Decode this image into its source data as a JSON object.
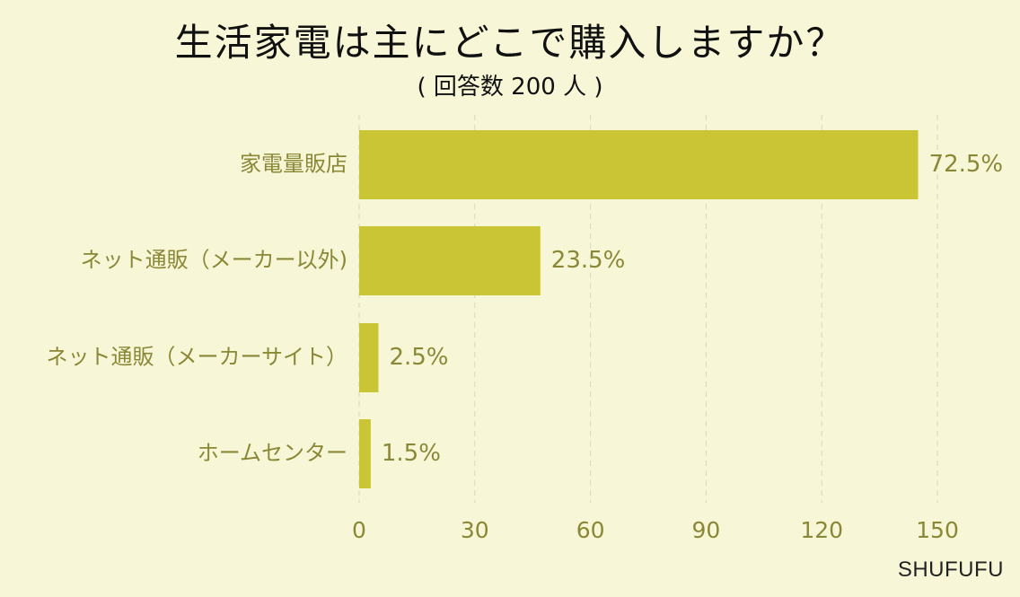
{
  "title": "生活家電は主にどこで購入しますか？",
  "subtitle": "( 回答数 200 人 )",
  "brand": "SHUFUFU",
  "colors": {
    "background": "#f7f7d8",
    "bar": "#c9c534",
    "label": "#8a8836",
    "grid": "#d6d6c0"
  },
  "chart_data": {
    "type": "bar",
    "orientation": "horizontal",
    "title": "生活家電は主にどこで購入しますか？",
    "subtitle": "( 回答数 200 人 )",
    "categories": [
      "家電量販店",
      "ネット通販（メーカー以外)",
      "ネット通販（メーカーサイト）",
      "ホームセンター"
    ],
    "values": [
      145,
      47,
      5,
      3
    ],
    "value_labels": [
      "72.5%",
      "23.5%",
      "2.5%",
      "1.5%"
    ],
    "xticks": [
      0,
      30,
      60,
      90,
      120,
      150
    ],
    "xtick_labels": [
      "0",
      "30",
      "60",
      "90",
      "120",
      "150"
    ],
    "xlim": [
      0,
      150
    ],
    "xlabel": "",
    "ylabel": "",
    "grid": "vertical dashed",
    "legend": "none"
  }
}
